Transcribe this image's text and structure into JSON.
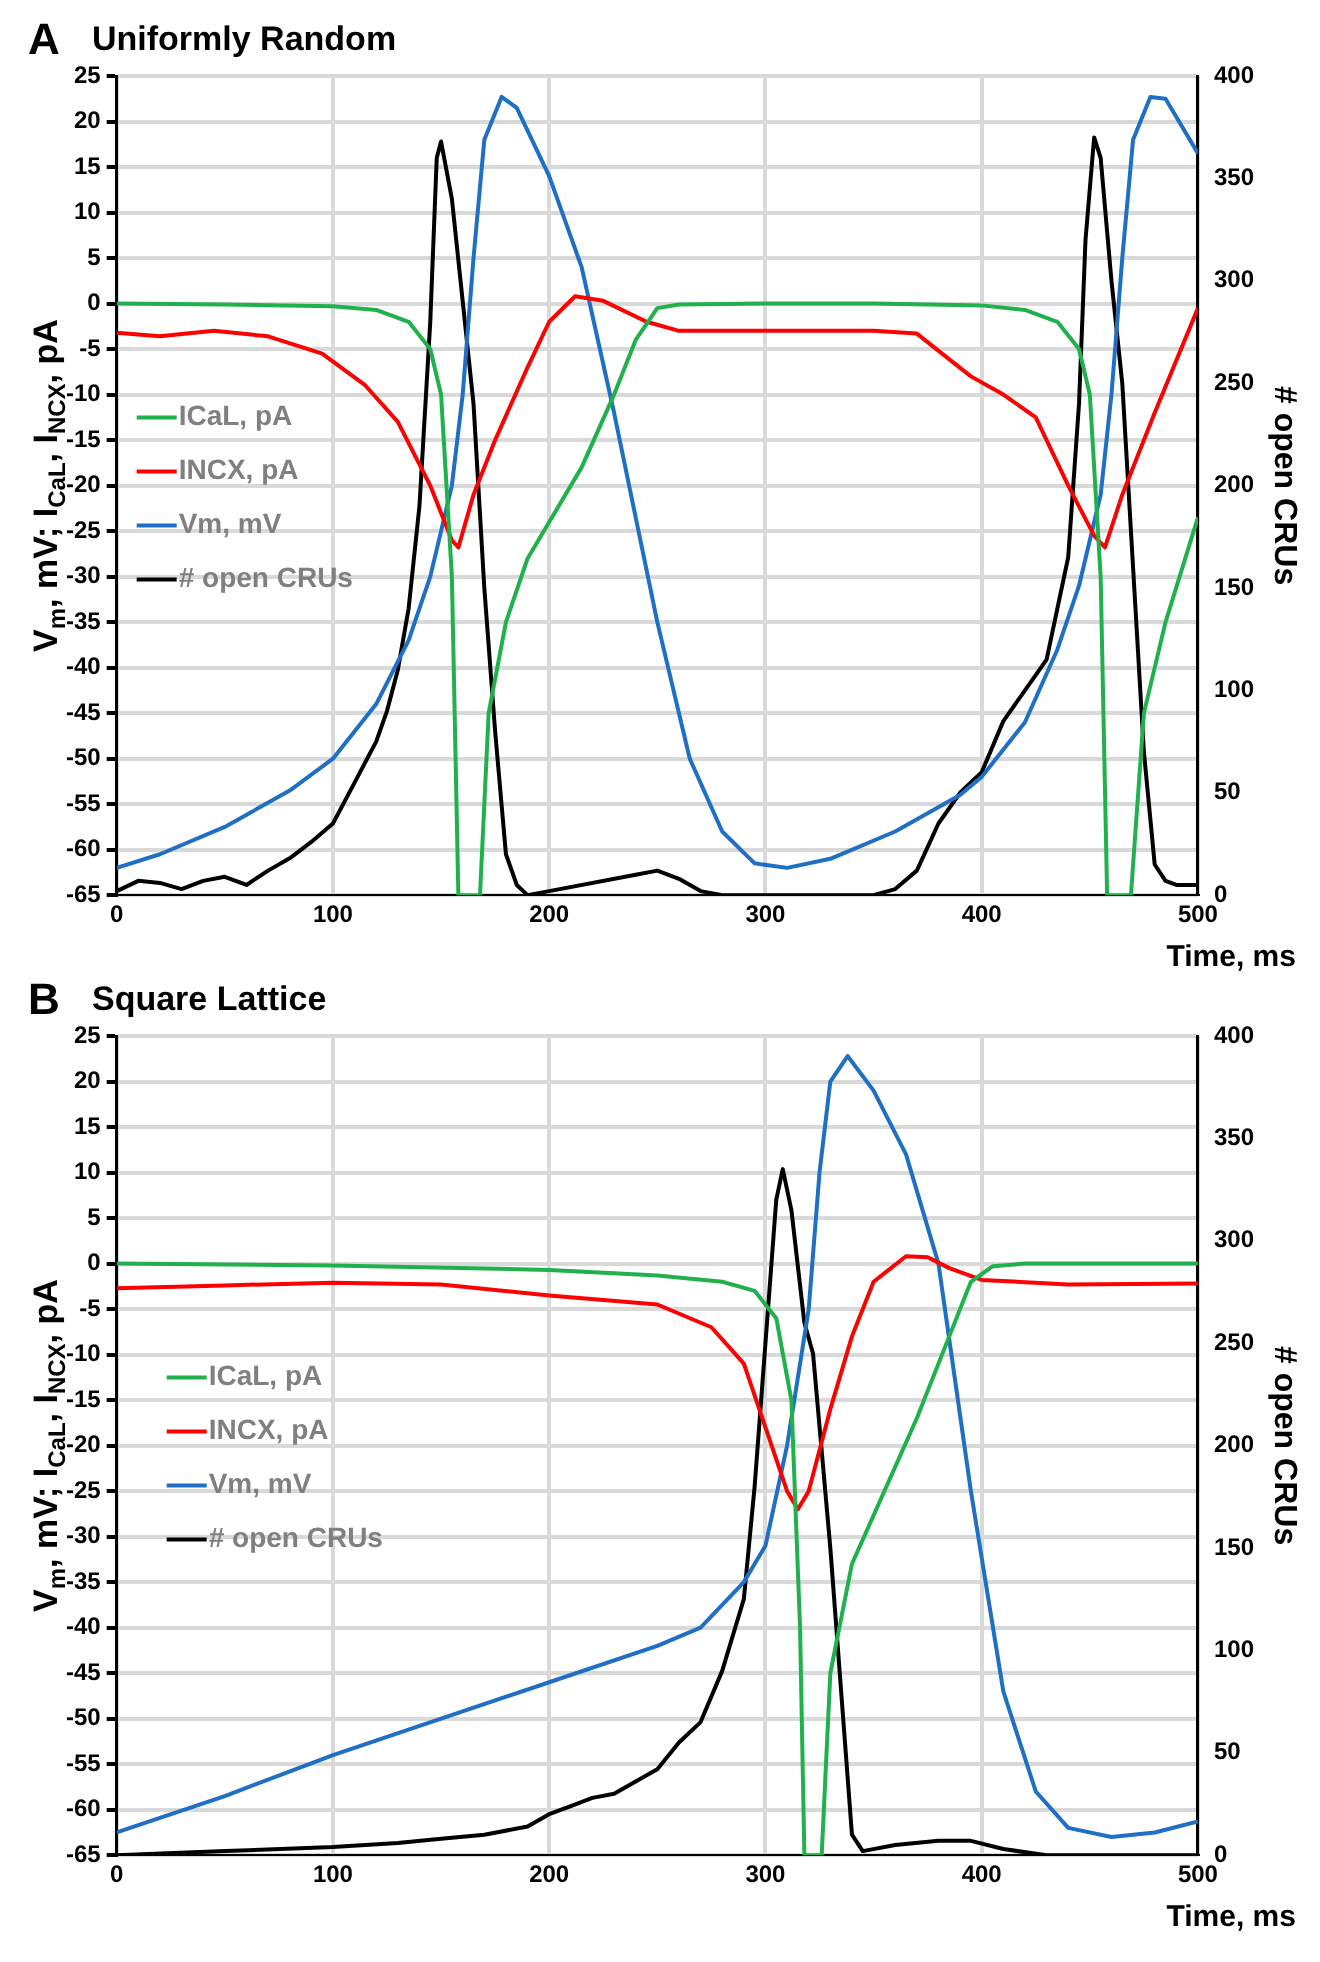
{
  "chart_data": [
    {
      "type": "line",
      "title": "Uniformly Random",
      "annotations": [
        "A"
      ],
      "xlabel": "Time, ms",
      "ylabel": "V$_{m}$, mV; I$_{CaL}$, I$_{NCX}$, pA",
      "y2label": "# open CRUs",
      "xlim": [
        0,
        500
      ],
      "xticks": [
        0,
        100,
        200,
        300,
        400,
        500
      ],
      "ylim": [
        -65,
        25
      ],
      "yticks": [
        -65,
        -60,
        -55,
        -50,
        -45,
        -40,
        -35,
        -30,
        -25,
        -20,
        -15,
        -10,
        -5,
        0,
        5,
        10,
        15,
        20,
        25
      ],
      "y2lim": [
        0,
        400
      ],
      "y2ticks": [
        0,
        50,
        100,
        150,
        200,
        250,
        300,
        350,
        400
      ],
      "grid": true,
      "legend": "left",
      "marker": "none",
      "series": [
        {
          "name": "ICaL, pA",
          "color": "#21b14c",
          "x": [
            0,
            50,
            100,
            120,
            135,
            145,
            150,
            155,
            158,
            168,
            172,
            180,
            190,
            200,
            215,
            230,
            240,
            250,
            260,
            300,
            350,
            400,
            420,
            435,
            445,
            450,
            455,
            458,
            469,
            475,
            485,
            500
          ],
          "values": [
            0,
            -0.1,
            -0.3,
            -0.7,
            -2,
            -5,
            -10,
            -30,
            -65,
            -65,
            -45,
            -35,
            -28,
            -24,
            -18,
            -10,
            -4,
            -0.5,
            -0.1,
            0,
            0,
            -0.2,
            -0.7,
            -2,
            -5,
            -10,
            -30,
            -65,
            -65,
            -45,
            -35,
            -23.5
          ]
        },
        {
          "name": "INCX, pA",
          "color": "#ff0000",
          "x": [
            0,
            20,
            45,
            70,
            95,
            115,
            130,
            145,
            155,
            158,
            165,
            175,
            190,
            200,
            212,
            225,
            245,
            260,
            300,
            350,
            370,
            395,
            410,
            425,
            440,
            452,
            457,
            465,
            480,
            500
          ],
          "values": [
            -3.2,
            -3.6,
            -3,
            -3.6,
            -5.5,
            -9,
            -13,
            -20,
            -26,
            -26.8,
            -21,
            -15,
            -7,
            -2,
            0.8,
            0.3,
            -2,
            -3,
            -3,
            -3,
            -3.3,
            -8,
            -10,
            -12.5,
            -20,
            -25.5,
            -26.8,
            -21,
            -12,
            -0.5
          ]
        },
        {
          "name": "Vm, mV",
          "color": "#1f6fc5",
          "x": [
            0,
            20,
            50,
            80,
            100,
            120,
            135,
            145,
            155,
            160,
            165,
            170,
            178,
            185,
            200,
            215,
            230,
            250,
            265,
            280,
            295,
            310,
            330,
            360,
            390,
            400,
            420,
            435,
            445,
            455,
            460,
            465,
            470,
            478,
            485,
            500
          ],
          "values": [
            -62,
            -60.5,
            -57.5,
            -53.5,
            -50,
            -44,
            -37,
            -30,
            -20,
            -10,
            5,
            18,
            22.7,
            21.5,
            14,
            4,
            -12,
            -35,
            -50,
            -58,
            -61.5,
            -62,
            -61,
            -58,
            -54,
            -52,
            -46,
            -38,
            -31,
            -21,
            -10,
            5,
            18,
            22.7,
            22.5,
            16.5
          ]
        },
        {
          "name": "# open CRUs",
          "color": "#000000",
          "axis": "y2",
          "x": [
            0,
            10,
            20,
            30,
            40,
            50,
            60,
            70,
            80,
            90,
            100,
            110,
            120,
            125,
            130,
            135,
            140,
            145,
            148,
            150,
            155,
            160,
            165,
            170,
            175,
            180,
            185,
            190,
            200,
            240,
            250,
            260,
            270,
            280,
            350,
            360,
            370,
            380,
            390,
            400,
            410,
            420,
            430,
            440,
            445,
            448,
            452,
            455,
            460,
            465,
            470,
            475,
            480,
            485,
            490,
            500
          ],
          "values": [
            2,
            7,
            6,
            3,
            7,
            9,
            5,
            12,
            18,
            26,
            35,
            55,
            75,
            90,
            110,
            140,
            190,
            280,
            360,
            368,
            340,
            290,
            240,
            150,
            80,
            20,
            5,
            0,
            2,
            10,
            12,
            8,
            2,
            0,
            0,
            3,
            12,
            35,
            50,
            60,
            85,
            100,
            115,
            165,
            240,
            320,
            370,
            360,
            300,
            250,
            160,
            70,
            15,
            7,
            5,
            5
          ]
        }
      ]
    },
    {
      "type": "line",
      "title": "Square Lattice",
      "annotations": [
        "B"
      ],
      "xlabel": "Time, ms",
      "ylabel": "V$_{m}$, mV; I$_{CaL}$, I$_{NCX}$, pA",
      "y2label": "# open CRUs",
      "xlim": [
        0,
        500
      ],
      "xticks": [
        0,
        100,
        200,
        300,
        400,
        500
      ],
      "ylim": [
        -65,
        25
      ],
      "yticks": [
        -65,
        -60,
        -55,
        -50,
        -45,
        -40,
        -35,
        -30,
        -25,
        -20,
        -15,
        -10,
        -5,
        0,
        5,
        10,
        15,
        20,
        25
      ],
      "y2lim": [
        0,
        400
      ],
      "y2ticks": [
        0,
        50,
        100,
        150,
        200,
        250,
        300,
        350,
        400
      ],
      "grid": true,
      "legend": "left",
      "marker": "none",
      "series": [
        {
          "name": "ICaL, pA",
          "color": "#21b14c",
          "x": [
            0,
            100,
            200,
            250,
            280,
            295,
            305,
            312,
            316,
            318,
            326,
            330,
            340,
            355,
            370,
            385,
            395,
            405,
            420,
            500
          ],
          "values": [
            0,
            -0.2,
            -0.7,
            -1.3,
            -2,
            -3,
            -6,
            -15,
            -40,
            -65,
            -65,
            -45,
            -33,
            -25,
            -17,
            -8,
            -2,
            -0.3,
            0,
            0
          ]
        },
        {
          "name": "INCX, pA",
          "color": "#ff0000",
          "x": [
            0,
            50,
            100,
            150,
            200,
            250,
            275,
            290,
            300,
            310,
            315,
            320,
            330,
            340,
            350,
            365,
            375,
            385,
            400,
            440,
            500
          ],
          "values": [
            -2.7,
            -2.4,
            -2.1,
            -2.3,
            -3.5,
            -4.5,
            -7,
            -11,
            -18,
            -25,
            -27,
            -25,
            -16,
            -8,
            -2,
            0.8,
            0.7,
            -0.5,
            -1.8,
            -2.3,
            -2.2
          ]
        },
        {
          "name": "Vm, mV",
          "color": "#1f6fc5",
          "x": [
            0,
            50,
            100,
            150,
            200,
            250,
            270,
            290,
            300,
            310,
            320,
            325,
            330,
            338,
            350,
            365,
            380,
            395,
            410,
            425,
            440,
            460,
            480,
            500
          ],
          "values": [
            -62.5,
            -58.5,
            -54,
            -50,
            -46,
            -42,
            -40,
            -35,
            -31,
            -20,
            -5,
            10,
            20,
            22.8,
            19,
            12,
            0,
            -25,
            -47,
            -58,
            -62,
            -63,
            -62.5,
            -61.3
          ]
        },
        {
          "name": "# open CRUs",
          "color": "#000000",
          "axis": "y2",
          "x": [
            0,
            50,
            100,
            130,
            150,
            170,
            190,
            200,
            210,
            220,
            230,
            240,
            250,
            260,
            270,
            280,
            290,
            295,
            300,
            305,
            308,
            312,
            318,
            322,
            330,
            335,
            340,
            345,
            360,
            380,
            395,
            410,
            430,
            500
          ],
          "values": [
            0,
            2,
            4,
            6,
            8,
            10,
            14,
            20,
            24,
            28,
            30,
            36,
            42,
            55,
            65,
            90,
            125,
            180,
            250,
            320,
            335,
            315,
            260,
            245,
            150,
            80,
            10,
            2,
            5,
            7,
            7,
            3,
            0,
            0
          ]
        }
      ]
    }
  ]
}
